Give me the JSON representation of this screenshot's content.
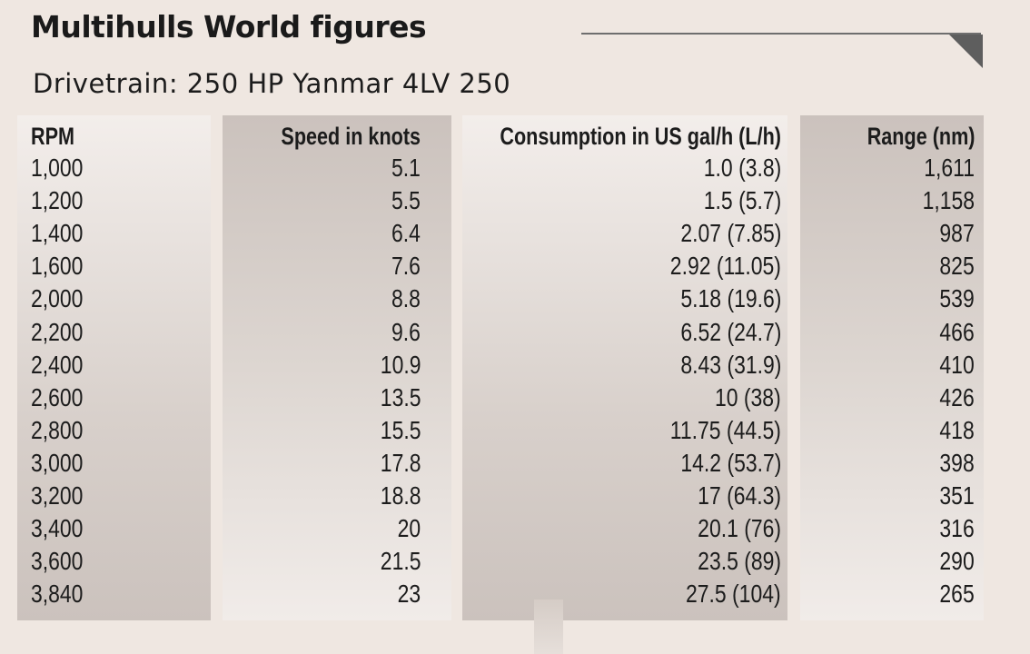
{
  "header": {
    "title": "Multihulls World figures",
    "subtitle": "Drivetrain: 250 HP Yanmar 4LV 250"
  },
  "chart_data": {
    "type": "table",
    "columns": [
      "RPM",
      "Speed in knots",
      "Consumption in US gal/h (L/h)",
      "Range (nm)"
    ],
    "rows": [
      [
        "1,000",
        "5.1",
        "1.0 (3.8)",
        "1,611"
      ],
      [
        "1,200",
        "5.5",
        "1.5 (5.7)",
        "1,158"
      ],
      [
        "1,400",
        "6.4",
        "2.07 (7.85)",
        "987"
      ],
      [
        "1,600",
        "7.6",
        "2.92 (11.05)",
        "825"
      ],
      [
        "2,000",
        "8.8",
        "5.18 (19.6)",
        "539"
      ],
      [
        "2,200",
        "9.6",
        "6.52 (24.7)",
        "466"
      ],
      [
        "2,400",
        "10.9",
        "8.43 (31.9)",
        "410"
      ],
      [
        "2,600",
        "13.5",
        "10 (38)",
        "426"
      ],
      [
        "2,800",
        "15.5",
        "11.75 (44.5)",
        "418"
      ],
      [
        "3,000",
        "17.8",
        "14.2 (53.7)",
        "398"
      ],
      [
        "3,200",
        "18.8",
        "17 (64.3)",
        "351"
      ],
      [
        "3,400",
        "20",
        "20.1 (76)",
        "316"
      ],
      [
        "3,600",
        "21.5",
        "23.5 (89)",
        "290"
      ],
      [
        "3,840",
        "23",
        "27.5 (104)",
        "265"
      ]
    ]
  }
}
